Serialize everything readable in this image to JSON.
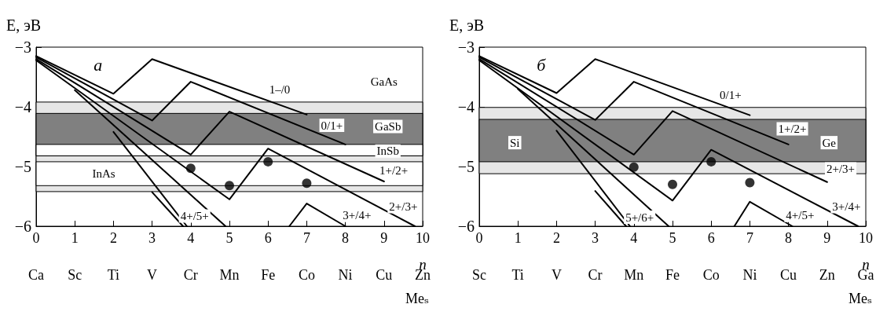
{
  "chart_data": [
    {
      "type": "line",
      "title": "а",
      "ylabel": "E, эВ",
      "xlabel": "n",
      "x2label": "Meₛ",
      "xlim": [
        0,
        10
      ],
      "xticks": [
        0,
        1,
        2,
        3,
        4,
        5,
        6,
        7,
        8,
        9,
        10
      ],
      "ylim": [
        -6,
        -3
      ],
      "yticks": [
        -6,
        -5,
        -4,
        -3
      ],
      "series": [
        {
          "color": "#000000",
          "x": [
            0,
            2,
            3,
            7
          ],
          "values": [
            -3.15,
            -3.78,
            -3.2,
            -4.13
          ]
        },
        {
          "color": "#000000",
          "x": [
            0,
            3,
            4,
            8
          ],
          "values": [
            -3.17,
            -4.23,
            -3.58,
            -4.63
          ]
        },
        {
          "color": "#000000",
          "x": [
            0,
            4,
            5,
            9
          ],
          "values": [
            -3.2,
            -4.8,
            -4.08,
            -5.25
          ]
        },
        {
          "color": "#000000",
          "x": [
            0,
            5,
            6,
            9.8
          ],
          "values": [
            -3.22,
            -5.55,
            -4.7,
            -6
          ]
        },
        {
          "color": "#000000",
          "x": [
            1,
            4.9,
            6,
            6.55,
            7,
            8
          ],
          "values": [
            -3.72,
            -6,
            null,
            -6,
            -5.62,
            -6
          ]
        },
        {
          "color": "#000000",
          "x": [
            2,
            3.9
          ],
          "values": [
            -4.42,
            -6
          ]
        },
        {
          "color": "#000000",
          "x": [
            3,
            3.8
          ],
          "values": [
            -5.43,
            -6
          ]
        },
        {
          "type": "scatter",
          "marker": "circle",
          "color": "#000000",
          "x": [
            4,
            5,
            6,
            7
          ],
          "values": [
            -5.03,
            -5.32,
            -4.92,
            -5.28
          ]
        }
      ],
      "bands": [
        {
          "axis": "y",
          "from": -3.92,
          "to": -5.42,
          "color": "#e6e6e6"
        },
        {
          "axis": "y",
          "from": -4.11,
          "to": -4.82,
          "color": "#808080"
        },
        {
          "axis": "y",
          "from": -4.63,
          "to": -4.82,
          "color": "#ffffff"
        },
        {
          "axis": "y",
          "from": -4.92,
          "to": -5.32,
          "color": "#ffffff"
        }
      ],
      "annotations": [
        {
          "text": "1–/0",
          "x": 6.3,
          "y": -3.71
        },
        {
          "text": "0/1+",
          "x": 7.65,
          "y": -4.31
        },
        {
          "text": "1+/2+",
          "x": 9.25,
          "y": -5.06
        },
        {
          "text": "2+/3+",
          "x": 9.5,
          "y": -5.67
        },
        {
          "text": "3+/4+",
          "x": 8.3,
          "y": -5.82
        },
        {
          "text": "4+/5+",
          "x": 4.1,
          "y": -5.83
        },
        {
          "text": "GaAs",
          "x": 9,
          "y": -3.58
        },
        {
          "text": "GaSb",
          "x": 9.1,
          "y": -4.33
        },
        {
          "text": "InSb",
          "x": 9.1,
          "y": -4.74
        },
        {
          "text": "InAs",
          "x": 1.75,
          "y": -5.12
        },
        "Ca",
        "Sc",
        "Ti",
        "V",
        "Cr",
        "Mn",
        "Fe",
        "Co",
        "Ni",
        "Cu",
        "Zn"
      ]
    },
    {
      "type": "line",
      "title": "б",
      "ylabel": "E, эВ",
      "xlabel": "n",
      "x2label": "Meₛ",
      "xlim": [
        0,
        10
      ],
      "xticks": [
        0,
        1,
        2,
        3,
        4,
        5,
        6,
        7,
        8,
        9,
        10
      ],
      "ylim": [
        -6,
        -3
      ],
      "yticks": [
        -6,
        -5,
        -4,
        -3
      ],
      "series": [
        {
          "color": "#000000",
          "x": [
            0,
            2,
            3,
            7
          ],
          "values": [
            -3.15,
            -3.77,
            -3.2,
            -4.14
          ]
        },
        {
          "color": "#000000",
          "x": [
            0,
            3,
            4,
            8
          ],
          "values": [
            -3.17,
            -4.22,
            -3.58,
            -4.63
          ]
        },
        {
          "color": "#000000",
          "x": [
            0,
            4,
            5,
            9
          ],
          "values": [
            -3.2,
            -4.8,
            -4.07,
            -5.26
          ]
        },
        {
          "color": "#000000",
          "x": [
            0,
            5,
            6,
            9.8
          ],
          "values": [
            -3.22,
            -5.57,
            -4.72,
            -6
          ]
        },
        {
          "color": "#000000",
          "x": [
            1,
            4.9,
            6,
            6.6,
            7,
            8.1
          ],
          "values": [
            -3.7,
            -6,
            null,
            -6,
            -5.59,
            -6
          ]
        },
        {
          "color": "#000000",
          "x": [
            2,
            3.9
          ],
          "values": [
            -4.4,
            -6
          ]
        },
        {
          "color": "#000000",
          "x": [
            3,
            3.8
          ],
          "values": [
            -5.41,
            -6
          ]
        },
        {
          "type": "scatter",
          "marker": "circle",
          "color": "#000000",
          "x": [
            4,
            5,
            6,
            7
          ],
          "values": [
            -5.01,
            -5.3,
            -4.92,
            -5.27
          ]
        }
      ],
      "bands": [
        {
          "axis": "y",
          "from": -4.01,
          "to": -5.12,
          "color": "#e6e6e6"
        },
        {
          "axis": "y",
          "from": -4.21,
          "to": -4.92,
          "color": "#808080"
        }
      ],
      "annotations": [
        {
          "text": "0/1+",
          "x": 6.5,
          "y": -3.8
        },
        {
          "text": "1+/2+",
          "x": 8.1,
          "y": -4.37
        },
        {
          "text": "2+/3+",
          "x": 9.35,
          "y": -5.04
        },
        {
          "text": "3+/4+",
          "x": 9.5,
          "y": -5.67
        },
        {
          "text": "4+/5+",
          "x": 8.3,
          "y": -5.82
        },
        {
          "text": "5+/6+",
          "x": 4.15,
          "y": -5.85
        },
        {
          "text": "Si",
          "x": 0.92,
          "y": -4.6
        },
        {
          "text": "Ge",
          "x": 9.05,
          "y": -4.6
        },
        "Sc",
        "Ti",
        "V",
        "Cr",
        "Mn",
        "Fe",
        "Co",
        "Ni",
        "Cu",
        "Zn",
        "Ga"
      ]
    }
  ]
}
